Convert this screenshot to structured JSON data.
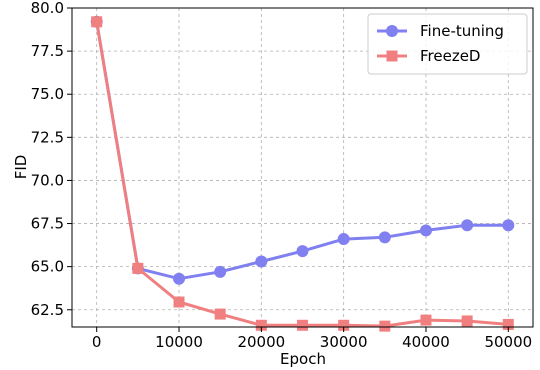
{
  "chart_data": {
    "type": "line",
    "title": "",
    "xlabel": "Epoch",
    "ylabel": "FID",
    "xlim": [
      -3000,
      53000
    ],
    "ylim": [
      61.5,
      80.0
    ],
    "x_ticks": [
      0,
      10000,
      20000,
      30000,
      40000,
      50000
    ],
    "x_tick_labels": [
      "0",
      "10000",
      "20000",
      "30000",
      "40000",
      "50000"
    ],
    "y_ticks": [
      62.5,
      65.0,
      67.5,
      70.0,
      72.5,
      75.0,
      77.5,
      80.0
    ],
    "y_tick_labels": [
      "62.5",
      "65.0",
      "67.5",
      "70.0",
      "72.5",
      "75.0",
      "77.5",
      "80.0"
    ],
    "grid": true,
    "legend_position": "top-right",
    "series": [
      {
        "name": "Fine-tuning",
        "color": "#8080f0",
        "marker": "circle",
        "x": [
          0,
          5000,
          10000,
          15000,
          20000,
          25000,
          30000,
          35000,
          40000,
          45000,
          50000
        ],
        "y": [
          79.2,
          64.9,
          64.3,
          64.7,
          65.3,
          65.9,
          66.6,
          66.7,
          67.1,
          67.4,
          67.4
        ]
      },
      {
        "name": "FreezeD",
        "color": "#f08080",
        "marker": "square",
        "x": [
          0,
          5000,
          10000,
          15000,
          20000,
          25000,
          30000,
          35000,
          40000,
          45000,
          50000
        ],
        "y": [
          79.2,
          64.9,
          62.95,
          62.25,
          61.6,
          61.6,
          61.6,
          61.55,
          61.9,
          61.85,
          61.65
        ]
      }
    ]
  }
}
